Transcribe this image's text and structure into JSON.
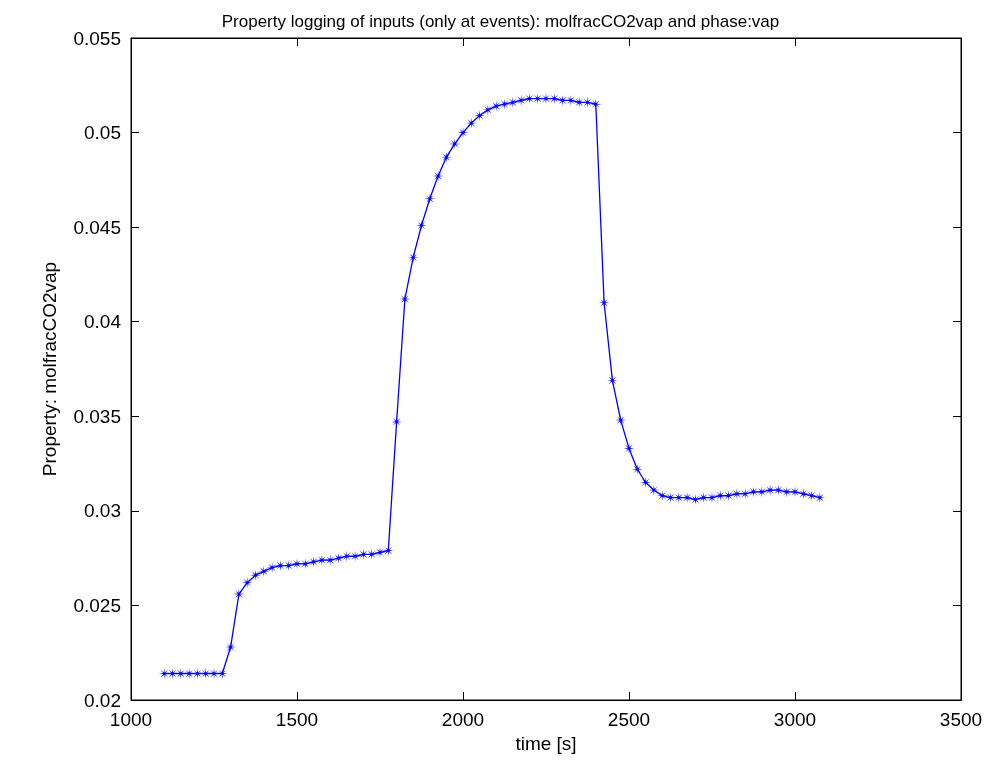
{
  "chart_data": {
    "type": "line",
    "title": "Property logging of inputs (only at events): molfracCO2vap and phase:vap",
    "xlabel": "time [s]",
    "ylabel": "Property: molfracCO2vap",
    "x": [
      1100,
      1125,
      1150,
      1175,
      1200,
      1225,
      1250,
      1275,
      1300,
      1325,
      1350,
      1375,
      1400,
      1425,
      1450,
      1475,
      1500,
      1525,
      1550,
      1575,
      1600,
      1625,
      1650,
      1675,
      1700,
      1725,
      1750,
      1775,
      1800,
      1825,
      1850,
      1875,
      1900,
      1925,
      1950,
      1975,
      2000,
      2025,
      2050,
      2075,
      2100,
      2125,
      2150,
      2175,
      2200,
      2225,
      2250,
      2275,
      2300,
      2325,
      2350,
      2375,
      2400,
      2425,
      2450,
      2475,
      2500,
      2525,
      2550,
      2575,
      2600,
      2625,
      2650,
      2675,
      2700,
      2725,
      2750,
      2775,
      2800,
      2825,
      2850,
      2875,
      2900,
      2925,
      2950,
      2975,
      3000,
      3025,
      3050,
      3075
    ],
    "series": [
      {
        "color": "#0000ff",
        "values": [
          0.0214,
          0.0214,
          0.0214,
          0.0214,
          0.0214,
          0.0214,
          0.0214,
          0.0214,
          0.0228,
          0.0256,
          0.0262,
          0.0266,
          0.0268,
          0.027,
          0.0271,
          0.0271,
          0.0272,
          0.0272,
          0.0273,
          0.0274,
          0.0274,
          0.0275,
          0.0276,
          0.0276,
          0.0277,
          0.0277,
          0.0278,
          0.0279,
          0.0347,
          0.0412,
          0.0434,
          0.0451,
          0.0465,
          0.0477,
          0.0487,
          0.0494,
          0.05,
          0.0505,
          0.0509,
          0.0512,
          0.0514,
          0.0515,
          0.0516,
          0.0517,
          0.0518,
          0.0518,
          0.0518,
          0.0518,
          0.0517,
          0.0517,
          0.0516,
          0.0516,
          0.0515,
          0.041,
          0.0369,
          0.0348,
          0.0333,
          0.0322,
          0.0315,
          0.0311,
          0.0308,
          0.0307,
          0.0307,
          0.0307,
          0.0306,
          0.0307,
          0.0307,
          0.0308,
          0.0308,
          0.0309,
          0.0309,
          0.031,
          0.031,
          0.0311,
          0.0311,
          0.031,
          0.031,
          0.0309,
          0.0308,
          0.0307
        ]
      }
    ],
    "xlim": [
      1000,
      3500
    ],
    "xticks": [
      1000,
      1500,
      2000,
      2500,
      3000,
      3500
    ],
    "ylim": [
      0.02,
      0.055
    ],
    "yticks": [
      0.02,
      0.025,
      0.03,
      0.035,
      0.04,
      0.045,
      0.05,
      0.055
    ],
    "grid": false,
    "marker": "star",
    "line_style": "solid"
  }
}
